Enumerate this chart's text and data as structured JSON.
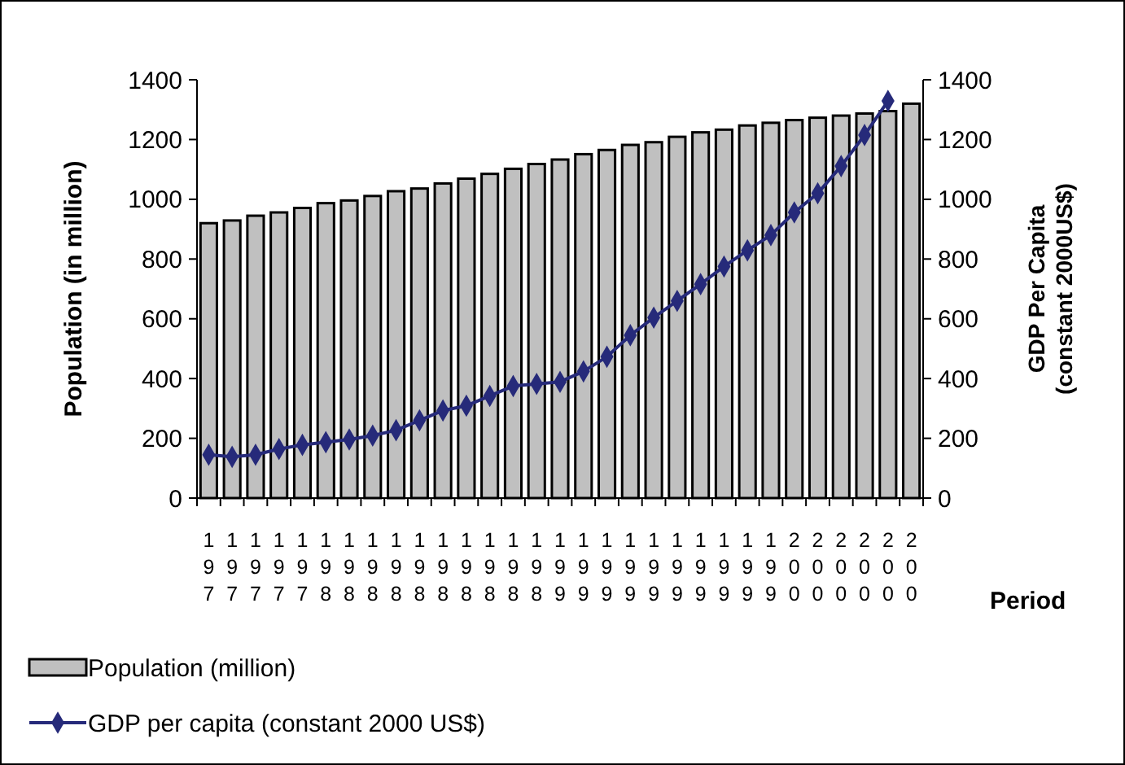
{
  "chart_data": {
    "type": "bar",
    "xlabel": "Period",
    "ylabel": "Population (in million)",
    "y2label": "GDP Per Capita (constant 2000US$)",
    "categories": [
      "197",
      "197",
      "197",
      "197",
      "197",
      "198",
      "198",
      "198",
      "198",
      "198",
      "198",
      "198",
      "198",
      "198",
      "198",
      "199",
      "199",
      "199",
      "199",
      "199",
      "199",
      "199",
      "199",
      "199",
      "199",
      "200",
      "200",
      "200",
      "200",
      "200",
      "200"
    ],
    "series": [
      {
        "name": "Population (million)",
        "color": "#c0c0c0",
        "values": [
          920,
          929,
          945,
          956,
          971,
          987,
          996,
          1011,
          1027,
          1036,
          1053,
          1069,
          1085,
          1102,
          1118,
          1133,
          1151,
          1165,
          1182,
          1191,
          1209,
          1224,
          1233,
          1247,
          1256,
          1265,
          1273,
          1280,
          1287,
          1295,
          1320
        ]
      },
      {
        "name": "GDP per capita (constant 2000 US$)",
        "type": "line",
        "color": "#262a7a",
        "marker": "diamond",
        "values": [
          145,
          138,
          145,
          164,
          178,
          187,
          196,
          209,
          227,
          260,
          293,
          309,
          342,
          375,
          382,
          389,
          424,
          473,
          545,
          604,
          660,
          716,
          775,
          829,
          880,
          956,
          1020,
          1111,
          1215,
          1329,
          null
        ]
      }
    ],
    "ylim": [
      0,
      1400
    ],
    "yticks": [
      0,
      200,
      400,
      600,
      800,
      1000,
      1200,
      1400
    ],
    "y2lim": [
      0,
      1400
    ],
    "y2ticks": [
      0,
      200,
      400,
      600,
      800,
      1000,
      1200,
      1400
    ],
    "grid": false,
    "legend": "bottom"
  }
}
